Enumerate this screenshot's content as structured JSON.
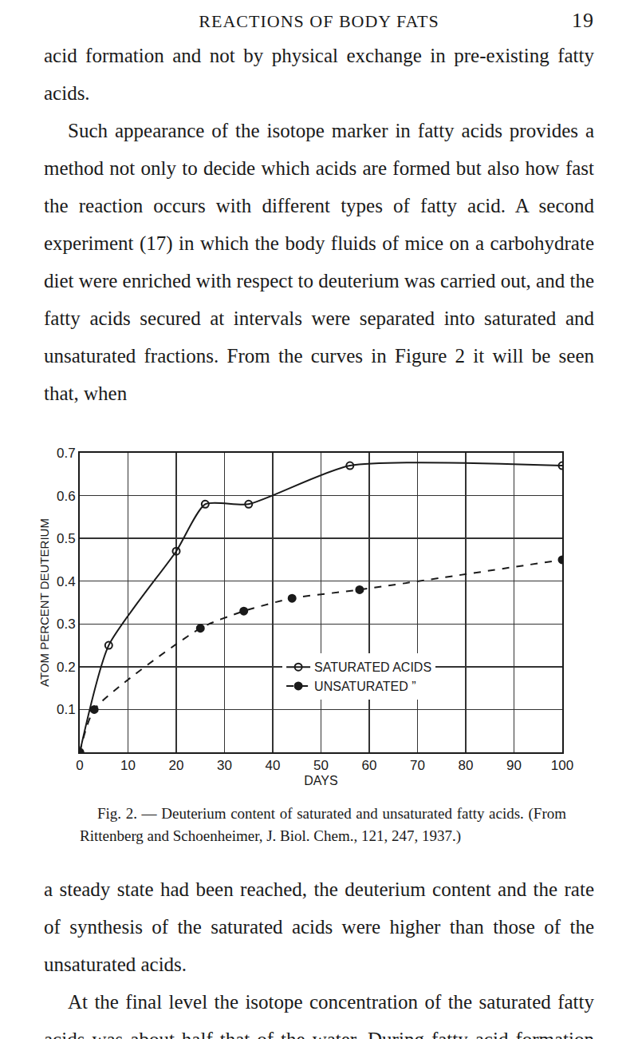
{
  "page": {
    "header": {
      "title": "REACTIONS OF BODY FATS",
      "page_number": "19"
    },
    "paragraphs_before": [
      {
        "text": "acid formation and not by physical exchange in pre-existing fatty acids.",
        "indent": false
      },
      {
        "text": "Such appearance of the isotope marker in fatty acids provides a method not only to decide which acids are formed but also how fast the reaction occurs with different types of fatty acid. A second experiment (17) in which the body fluids of mice on a carbohydrate diet were enriched with respect to deuterium was carried out, and the fatty acids secured at intervals were separated into saturated and unsaturated fractions. From the curves in Figure 2 it will be seen that, when",
        "indent": true
      }
    ],
    "caption": "Fig. 2. — Deuterium content of saturated and unsaturated fatty acids. (From Rittenberg and Schoenheimer, J. Biol. Chem., 121, 247, 1937.)",
    "paragraphs_after": [
      {
        "text": "a steady state had been reached, the deuterium content and the rate of synthesis of the saturated acids were higher than those of the unsaturated acids.",
        "indent": false
      },
      {
        "text": "At the final level the isotope concentration of the saturated fatty acids was about half that of the water. During fatty acid formation half of the hydrogen atoms had thus been",
        "indent": true
      }
    ]
  },
  "chart_data": {
    "type": "line",
    "xlabel": "DAYS",
    "ylabel": "ATOM PERCENT DEUTERIUM",
    "xlim": [
      0,
      100
    ],
    "ylim": [
      0,
      0.7
    ],
    "xticks": [
      0,
      10,
      20,
      30,
      40,
      50,
      60,
      70,
      80,
      90,
      100
    ],
    "yticks": [
      0.1,
      0.2,
      0.3,
      0.4,
      0.5,
      0.6,
      0.7
    ],
    "grid": true,
    "legend": "bottom-center",
    "series": [
      {
        "name": "SATURATED ACIDS",
        "color": "#1a1a1a",
        "marker": "open-circle",
        "line_style": "solid",
        "x": [
          0,
          6,
          20,
          26,
          35,
          56,
          100
        ],
        "values": [
          0,
          0.25,
          0.47,
          0.58,
          0.58,
          0.67,
          0.67
        ]
      },
      {
        "name": "UNSATURATED ”",
        "color": "#1a1a1a",
        "marker": "filled-circle",
        "line_style": "dashed",
        "x": [
          0,
          3,
          25,
          34,
          44,
          58,
          100
        ],
        "values": [
          0,
          0.1,
          0.29,
          0.33,
          0.36,
          0.38,
          0.45
        ]
      }
    ]
  }
}
